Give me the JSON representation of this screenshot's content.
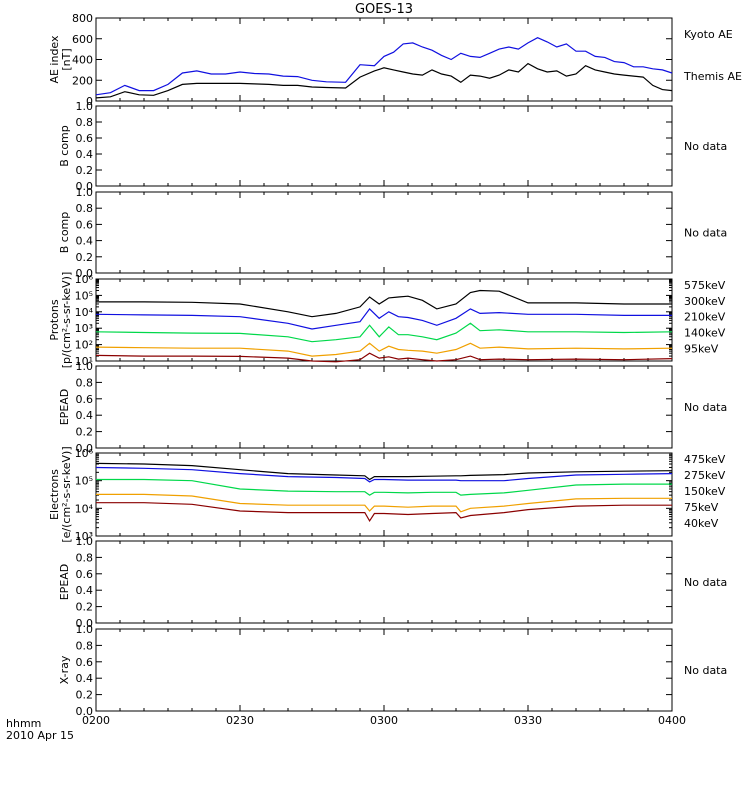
{
  "title": "GOES-13",
  "time_axis": {
    "label": "hhmm",
    "date": "2010 Apr 15",
    "ticks": [
      "0200",
      "0230",
      "0300",
      "0330",
      "0400"
    ]
  },
  "colors": {
    "black": "#000000",
    "blue": "#1010e0",
    "green": "#00d84a",
    "orange": "#f0a000",
    "darkred": "#8a0000"
  },
  "chart_data": [
    {
      "type": "line",
      "panel": "ae",
      "ylabel_lines": [
        "AE index",
        "[nT]"
      ],
      "ylim": [
        0,
        800
      ],
      "yticks": [
        "0",
        "200",
        "400",
        "600",
        "800"
      ],
      "x_unit": "minutes after 0200",
      "series": [
        {
          "name": "Kyoto AE",
          "color": "blue",
          "x": [
            0,
            3,
            6,
            9,
            12,
            15,
            18,
            21,
            24,
            27,
            30,
            33,
            36,
            39,
            42,
            45,
            48,
            52,
            55,
            58,
            60,
            62,
            64,
            66,
            68,
            70,
            72,
            74,
            76,
            78,
            80,
            82,
            84,
            86,
            88,
            90,
            92,
            94,
            96,
            98,
            100,
            102,
            104,
            106,
            108,
            110,
            112,
            114,
            116,
            118,
            120
          ],
          "y": [
            60,
            80,
            150,
            100,
            100,
            160,
            270,
            290,
            260,
            260,
            280,
            265,
            260,
            240,
            235,
            200,
            185,
            180,
            350,
            340,
            430,
            470,
            550,
            560,
            520,
            490,
            440,
            400,
            460,
            430,
            420,
            460,
            500,
            520,
            500,
            560,
            610,
            570,
            520,
            550,
            480,
            480,
            430,
            420,
            380,
            370,
            330,
            330,
            310,
            300,
            270
          ]
        },
        {
          "name": "Themis AE",
          "color": "black",
          "x": [
            0,
            3,
            6,
            9,
            12,
            15,
            18,
            21,
            24,
            27,
            30,
            33,
            36,
            39,
            42,
            45,
            48,
            52,
            55,
            58,
            60,
            62,
            64,
            66,
            68,
            70,
            72,
            74,
            76,
            78,
            80,
            82,
            84,
            86,
            88,
            90,
            92,
            94,
            96,
            98,
            100,
            102,
            104,
            106,
            108,
            110,
            112,
            114,
            116,
            118,
            120
          ],
          "y": [
            30,
            40,
            90,
            60,
            55,
            100,
            160,
            170,
            170,
            170,
            170,
            165,
            160,
            150,
            150,
            135,
            130,
            125,
            230,
            290,
            320,
            300,
            280,
            260,
            250,
            300,
            260,
            240,
            180,
            250,
            240,
            220,
            250,
            300,
            280,
            360,
            310,
            280,
            290,
            240,
            260,
            340,
            300,
            280,
            260,
            250,
            240,
            230,
            150,
            110,
            100
          ]
        }
      ]
    },
    {
      "type": "line",
      "panel": "empty",
      "ylabel_lines": [
        "B comp"
      ],
      "ylim": [
        0,
        1
      ],
      "yticks": [
        "0.0",
        "0.2",
        "0.4",
        "0.6",
        "0.8",
        "1.0"
      ],
      "series": [],
      "note": "No data"
    },
    {
      "type": "line",
      "panel": "empty",
      "ylabel_lines": [
        "B comp"
      ],
      "ylim": [
        0,
        1
      ],
      "yticks": [
        "0.0",
        "0.2",
        "0.4",
        "0.6",
        "0.8",
        "1.0"
      ],
      "series": [],
      "note": "No data"
    },
    {
      "type": "line",
      "panel": "protons",
      "log_scale": true,
      "ylabel_lines": [
        "Protons",
        "[p/(cm²-s-sr-keV)]"
      ],
      "ylim": [
        10,
        1000000
      ],
      "yticks": [
        "10¹",
        "10²",
        "10³",
        "10⁴",
        "10⁵",
        "10⁶"
      ],
      "x_unit": "minutes after 0200",
      "series": [
        {
          "name": "575keV",
          "color": "darkred",
          "x": [
            0,
            10,
            20,
            30,
            40,
            45,
            50,
            55,
            57,
            59,
            61,
            63,
            65,
            68,
            71,
            75,
            78,
            80,
            84,
            90,
            100,
            110,
            120
          ],
          "y": [
            22,
            20,
            20,
            19,
            15,
            10,
            9,
            12,
            30,
            15,
            18,
            13,
            15,
            12,
            10,
            12,
            20,
            12,
            13,
            12,
            13,
            12,
            14
          ]
        },
        {
          "name": "300keV",
          "color": "orange",
          "x": [
            0,
            10,
            20,
            30,
            40,
            45,
            50,
            55,
            57,
            59,
            61,
            63,
            65,
            68,
            71,
            75,
            78,
            80,
            84,
            90,
            100,
            110,
            120
          ],
          "y": [
            70,
            65,
            60,
            60,
            40,
            20,
            25,
            40,
            120,
            40,
            80,
            50,
            45,
            40,
            30,
            50,
            120,
            60,
            70,
            55,
            60,
            55,
            60
          ]
        },
        {
          "name": "210keV",
          "color": "green",
          "x": [
            0,
            10,
            20,
            30,
            40,
            45,
            50,
            55,
            57,
            59,
            61,
            63,
            65,
            68,
            71,
            75,
            78,
            80,
            84,
            90,
            100,
            110,
            120
          ],
          "y": [
            600,
            550,
            500,
            480,
            300,
            150,
            200,
            300,
            1500,
            300,
            1200,
            400,
            400,
            300,
            200,
            500,
            2000,
            700,
            800,
            600,
            600,
            550,
            600
          ]
        },
        {
          "name": "140keV",
          "color": "blue",
          "x": [
            0,
            10,
            20,
            30,
            40,
            45,
            50,
            55,
            57,
            59,
            61,
            63,
            65,
            68,
            71,
            75,
            78,
            80,
            84,
            90,
            100,
            110,
            120
          ],
          "y": [
            7000,
            6500,
            6000,
            5000,
            2000,
            900,
            1500,
            2500,
            15000,
            4000,
            10000,
            5000,
            4500,
            3000,
            1500,
            4000,
            15000,
            8000,
            9000,
            7000,
            7000,
            6000,
            6000
          ]
        },
        {
          "name": "95keV",
          "color": "black",
          "x": [
            0,
            10,
            20,
            30,
            40,
            45,
            50,
            55,
            57,
            59,
            61,
            63,
            65,
            68,
            71,
            75,
            78,
            80,
            84,
            90,
            100,
            110,
            120
          ],
          "y": [
            40000,
            40000,
            38000,
            30000,
            10000,
            5000,
            8000,
            20000,
            80000,
            30000,
            70000,
            80000,
            90000,
            50000,
            15000,
            30000,
            150000,
            200000,
            180000,
            35000,
            35000,
            30000,
            30000
          ]
        }
      ]
    },
    {
      "type": "line",
      "panel": "empty",
      "ylabel_lines": [
        "EPEAD"
      ],
      "ylim": [
        0,
        1
      ],
      "yticks": [
        "0.0",
        "0.2",
        "0.4",
        "0.6",
        "0.8",
        "1.0"
      ],
      "series": [],
      "note": "No data"
    },
    {
      "type": "line",
      "panel": "electrons",
      "log_scale": true,
      "ylabel_lines": [
        "Electrons",
        "[e/(cm²-s-sr-keV)]"
      ],
      "ylim": [
        1000,
        1000000
      ],
      "yticks": [
        "10³",
        "10⁴",
        "10⁵",
        "10⁶"
      ],
      "x_unit": "minutes after 0200",
      "series": [
        {
          "name": "475keV",
          "color": "darkred",
          "x": [
            0,
            10,
            20,
            30,
            40,
            50,
            56,
            57,
            58,
            60,
            65,
            70,
            75,
            76,
            78,
            85,
            90,
            100,
            110,
            120
          ],
          "y": [
            16000,
            16000,
            14000,
            8000,
            7000,
            7000,
            7000,
            3500,
            6500,
            6500,
            6000,
            6500,
            7000,
            4500,
            5500,
            7000,
            9000,
            12000,
            13000,
            13000
          ]
        },
        {
          "name": "275keV",
          "color": "orange",
          "x": [
            0,
            10,
            20,
            30,
            40,
            50,
            56,
            57,
            58,
            60,
            65,
            70,
            75,
            76,
            78,
            85,
            90,
            100,
            110,
            120
          ],
          "y": [
            32000,
            32000,
            28000,
            15000,
            13000,
            13000,
            13000,
            8000,
            12000,
            12000,
            11000,
            12000,
            12000,
            7500,
            10000,
            12000,
            15000,
            22000,
            23000,
            23000
          ]
        },
        {
          "name": "150keV",
          "color": "green",
          "x": [
            0,
            10,
            20,
            30,
            40,
            50,
            56,
            57,
            58,
            60,
            65,
            70,
            75,
            76,
            78,
            85,
            90,
            100,
            110,
            120
          ],
          "y": [
            110000,
            110000,
            100000,
            50000,
            42000,
            40000,
            40000,
            30000,
            38000,
            38000,
            36000,
            38000,
            38000,
            30000,
            32000,
            36000,
            45000,
            70000,
            75000,
            75000
          ]
        },
        {
          "name": "75keV",
          "color": "blue",
          "x": [
            0,
            10,
            20,
            30,
            40,
            50,
            56,
            57,
            58,
            60,
            65,
            70,
            75,
            76,
            78,
            85,
            90,
            100,
            110,
            120
          ],
          "y": [
            300000,
            280000,
            250000,
            180000,
            140000,
            130000,
            120000,
            90000,
            110000,
            110000,
            105000,
            105000,
            105000,
            100000,
            100000,
            100000,
            120000,
            160000,
            170000,
            180000
          ]
        },
        {
          "name": "40keV",
          "color": "black",
          "x": [
            0,
            10,
            20,
            30,
            40,
            50,
            56,
            57,
            58,
            60,
            65,
            70,
            75,
            76,
            78,
            85,
            90,
            100,
            110,
            120
          ],
          "y": [
            420000,
            400000,
            350000,
            250000,
            180000,
            160000,
            150000,
            110000,
            140000,
            140000,
            140000,
            145000,
            150000,
            150000,
            155000,
            165000,
            190000,
            210000,
            220000,
            230000
          ]
        }
      ]
    },
    {
      "type": "line",
      "panel": "empty",
      "ylabel_lines": [
        "EPEAD"
      ],
      "ylim": [
        0,
        1
      ],
      "yticks": [
        "0.0",
        "0.2",
        "0.4",
        "0.6",
        "0.8",
        "1.0"
      ],
      "series": [],
      "note": "No data"
    },
    {
      "type": "line",
      "panel": "empty",
      "ylabel_lines": [
        "X-ray"
      ],
      "ylim": [
        0,
        1
      ],
      "yticks": [
        "0.0",
        "0.2",
        "0.4",
        "0.6",
        "0.8",
        "1.0"
      ],
      "series": [],
      "note": "No data"
    }
  ]
}
